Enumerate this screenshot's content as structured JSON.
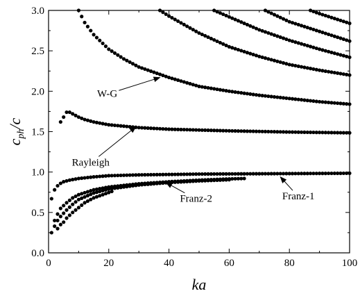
{
  "chart_data": {
    "type": "scatter",
    "title": "",
    "xlabel": "ka",
    "ylabel": "c_ph/c",
    "xlim": [
      0,
      100
    ],
    "ylim": [
      0.0,
      3.0
    ],
    "xticks": [
      0,
      20,
      40,
      60,
      80,
      100
    ],
    "yticks": [
      0.0,
      0.5,
      1.0,
      1.5,
      2.0,
      2.5,
      3.0
    ],
    "xtick_labels": [
      "0",
      "20",
      "40",
      "60",
      "80",
      "100"
    ],
    "ytick_labels": [
      "0.0",
      "0.5",
      "1.0",
      "1.5",
      "2.0",
      "2.5",
      "3.0"
    ],
    "ylabel_display": {
      "main": "c",
      "sub": "ph",
      "tail": "/c"
    },
    "grid": false,
    "marker_color": "#000000",
    "series": [
      {
        "name": "Rayleigh",
        "x_start": 4,
        "x_end": 100,
        "step": 1,
        "points": [
          [
            4,
            1.62
          ],
          [
            6,
            1.74
          ],
          [
            7,
            1.74
          ],
          [
            8,
            1.72
          ],
          [
            10,
            1.68
          ],
          [
            12,
            1.65
          ],
          [
            15,
            1.62
          ],
          [
            20,
            1.585
          ],
          [
            30,
            1.55
          ],
          [
            40,
            1.53
          ],
          [
            60,
            1.51
          ],
          [
            80,
            1.495
          ],
          [
            100,
            1.485
          ]
        ]
      },
      {
        "name": "W-G",
        "x_start": 10,
        "x_end": 100,
        "step": 1,
        "points": [
          [
            10,
            3.0
          ],
          [
            12,
            2.85
          ],
          [
            15,
            2.7
          ],
          [
            20,
            2.52
          ],
          [
            25,
            2.4
          ],
          [
            30,
            2.3
          ],
          [
            40,
            2.17
          ],
          [
            50,
            2.06
          ],
          [
            60,
            2.0
          ],
          [
            70,
            1.95
          ],
          [
            80,
            1.91
          ],
          [
            90,
            1.87
          ],
          [
            100,
            1.84
          ]
        ]
      },
      {
        "name": "",
        "x_start": 37,
        "x_end": 100,
        "step": 1,
        "points": [
          [
            37,
            3.0
          ],
          [
            40,
            2.93
          ],
          [
            50,
            2.72
          ],
          [
            60,
            2.55
          ],
          [
            70,
            2.43
          ],
          [
            80,
            2.33
          ],
          [
            90,
            2.26
          ],
          [
            100,
            2.2
          ]
        ]
      },
      {
        "name": "",
        "x_start": 55,
        "x_end": 100,
        "step": 1,
        "points": [
          [
            55,
            3.0
          ],
          [
            60,
            2.92
          ],
          [
            70,
            2.76
          ],
          [
            80,
            2.63
          ],
          [
            90,
            2.52
          ],
          [
            100,
            2.42
          ]
        ]
      },
      {
        "name": "",
        "x_start": 72,
        "x_end": 100,
        "step": 1,
        "points": [
          [
            72,
            3.0
          ],
          [
            80,
            2.86
          ],
          [
            90,
            2.74
          ],
          [
            100,
            2.62
          ]
        ]
      },
      {
        "name": "",
        "x_start": 87,
        "x_end": 100,
        "step": 1,
        "points": [
          [
            87,
            3.0
          ],
          [
            90,
            2.96
          ],
          [
            95,
            2.9
          ],
          [
            100,
            2.84
          ]
        ]
      },
      {
        "name": "Franz-1",
        "x_start": 1,
        "x_end": 100,
        "step": 1,
        "points": [
          [
            1,
            0.67
          ],
          [
            2,
            0.78
          ],
          [
            3,
            0.83
          ],
          [
            4,
            0.86
          ],
          [
            5,
            0.88
          ],
          [
            7,
            0.9
          ],
          [
            10,
            0.92
          ],
          [
            15,
            0.94
          ],
          [
            20,
            0.955
          ],
          [
            30,
            0.965
          ],
          [
            50,
            0.975
          ],
          [
            75,
            0.98
          ],
          [
            100,
            0.985
          ]
        ]
      },
      {
        "name": "Franz-2",
        "x_start": 1,
        "x_end": 65,
        "step": 1,
        "points": [
          [
            1,
            0.25
          ],
          [
            2,
            0.4
          ],
          [
            3,
            0.48
          ],
          [
            4,
            0.55
          ],
          [
            6,
            0.62
          ],
          [
            8,
            0.68
          ],
          [
            10,
            0.72
          ],
          [
            15,
            0.78
          ],
          [
            20,
            0.815
          ],
          [
            30,
            0.855
          ],
          [
            40,
            0.88
          ],
          [
            50,
            0.9
          ],
          [
            60,
            0.915
          ],
          [
            65,
            0.92
          ]
        ]
      },
      {
        "name": "",
        "x_start": 2,
        "x_end": 60,
        "step": 1,
        "points": [
          [
            2,
            0.33
          ],
          [
            3,
            0.4
          ],
          [
            4,
            0.45
          ],
          [
            6,
            0.53
          ],
          [
            8,
            0.6
          ],
          [
            10,
            0.66
          ],
          [
            15,
            0.74
          ],
          [
            20,
            0.79
          ],
          [
            30,
            0.84
          ],
          [
            40,
            0.87
          ],
          [
            50,
            0.89
          ],
          [
            60,
            0.905
          ]
        ]
      },
      {
        "name": "",
        "x_start": 3,
        "x_end": 21,
        "step": 1,
        "points": [
          [
            3,
            0.3
          ],
          [
            4,
            0.35
          ],
          [
            5,
            0.38
          ],
          [
            6,
            0.43
          ],
          [
            8,
            0.5
          ],
          [
            10,
            0.56
          ],
          [
            12,
            0.62
          ],
          [
            15,
            0.68
          ],
          [
            18,
            0.72
          ],
          [
            21,
            0.76
          ]
        ]
      }
    ],
    "annotations": [
      {
        "text": "W-G",
        "label_x": 19.5,
        "label_y": 1.93,
        "arrow_to_x": 37,
        "arrow_to_y": 2.17
      },
      {
        "text": "Rayleigh",
        "label_x": 14,
        "label_y": 1.08,
        "arrow_to_x": 29,
        "arrow_to_y": 1.56
      },
      {
        "text": "Franz-2",
        "label_x": 49,
        "label_y": 0.63,
        "arrow_to_x": 39,
        "arrow_to_y": 0.87
      },
      {
        "text": "Franz-1",
        "label_x": 83,
        "label_y": 0.66,
        "arrow_to_x": 77,
        "arrow_to_y": 0.94
      }
    ]
  }
}
